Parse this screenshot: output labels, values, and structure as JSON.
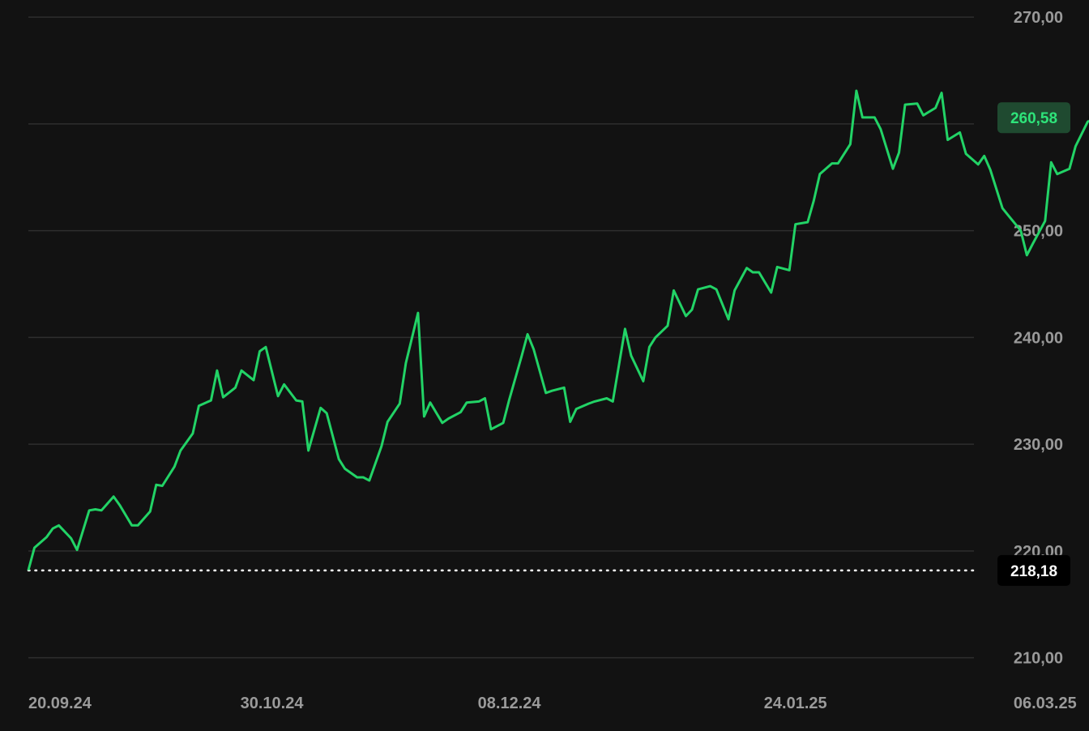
{
  "colors": {
    "background": "#121212",
    "line": "#22d366",
    "grid": "#2e2e2e",
    "tick_text": "#9a9a9a",
    "baseline": "#ffffff",
    "last_badge_bg": "#1f4a30",
    "last_badge_text": "#2ee47a",
    "base_badge_bg": "#000000",
    "base_badge_text": "#ffffff"
  },
  "chart_data": {
    "type": "line",
    "y_ticks": [
      "270,00",
      "260,00",
      "250,00",
      "240,00",
      "230,00",
      "220,00",
      "210,00"
    ],
    "y_tick_values": [
      270,
      260,
      250,
      240,
      230,
      220,
      210
    ],
    "ylim": [
      208,
      271.6
    ],
    "x_ticks": [
      "20.09.24",
      "30.10.24",
      "08.12.24",
      "24.01.25",
      "06.03.25"
    ],
    "x_tick_dates": [
      "2024-09-20",
      "2024-10-30",
      "2024-12-08",
      "2025-01-24",
      "2025-03-06"
    ],
    "xlim": [
      "2024-09-20",
      "2025-03-20"
    ],
    "grid": true,
    "baseline": {
      "value": 218.18,
      "label": "218,18",
      "style": "dotted"
    },
    "last_value": {
      "value": 260.58,
      "label": "260,58"
    },
    "series": [
      {
        "points": [
          [
            "2024-09-20",
            218.2
          ],
          [
            "2024-09-21",
            220.3
          ],
          [
            "2024-09-23",
            221.3
          ],
          [
            "2024-09-24",
            222.1
          ],
          [
            "2024-09-25",
            222.4
          ],
          [
            "2024-09-27",
            221.2
          ],
          [
            "2024-09-28",
            220.1
          ],
          [
            "2024-09-30",
            223.8
          ],
          [
            "2024-10-01",
            223.9
          ],
          [
            "2024-10-02",
            223.8
          ],
          [
            "2024-10-04",
            225.1
          ],
          [
            "2024-10-05",
            224.3
          ],
          [
            "2024-10-07",
            222.4
          ],
          [
            "2024-10-08",
            222.4
          ],
          [
            "2024-10-10",
            223.7
          ],
          [
            "2024-10-11",
            226.2
          ],
          [
            "2024-10-12",
            226.1
          ],
          [
            "2024-10-14",
            227.9
          ],
          [
            "2024-10-15",
            229.4
          ],
          [
            "2024-10-17",
            231.0
          ],
          [
            "2024-10-18",
            233.6
          ],
          [
            "2024-10-20",
            234.1
          ],
          [
            "2024-10-21",
            236.9
          ],
          [
            "2024-10-22",
            234.4
          ],
          [
            "2024-10-24",
            235.3
          ],
          [
            "2024-10-25",
            236.9
          ],
          [
            "2024-10-27",
            236.0
          ],
          [
            "2024-10-28",
            238.7
          ],
          [
            "2024-10-29",
            239.1
          ],
          [
            "2024-10-31",
            234.5
          ],
          [
            "2024-11-01",
            235.6
          ],
          [
            "2024-11-03",
            234.1
          ],
          [
            "2024-11-04",
            234.0
          ],
          [
            "2024-11-05",
            229.4
          ],
          [
            "2024-11-07",
            233.4
          ],
          [
            "2024-11-08",
            232.9
          ],
          [
            "2024-11-10",
            228.6
          ],
          [
            "2024-11-11",
            227.7
          ],
          [
            "2024-11-13",
            226.9
          ],
          [
            "2024-11-14",
            226.9
          ],
          [
            "2024-11-15",
            226.6
          ],
          [
            "2024-11-17",
            229.8
          ],
          [
            "2024-11-18",
            232.1
          ],
          [
            "2024-11-20",
            233.8
          ],
          [
            "2024-11-21",
            237.6
          ],
          [
            "2024-11-23",
            242.3
          ],
          [
            "2024-11-24",
            232.6
          ],
          [
            "2024-11-25",
            233.9
          ],
          [
            "2024-11-27",
            232.0
          ],
          [
            "2024-11-28",
            232.4
          ],
          [
            "2024-11-30",
            233.0
          ],
          [
            "2024-12-01",
            233.9
          ],
          [
            "2024-12-03",
            234.0
          ],
          [
            "2024-12-04",
            234.3
          ],
          [
            "2024-12-05",
            231.4
          ],
          [
            "2024-12-07",
            232.0
          ],
          [
            "2024-12-08",
            234.2
          ],
          [
            "2024-12-10",
            238.2
          ],
          [
            "2024-12-11",
            240.3
          ],
          [
            "2024-12-12",
            238.9
          ],
          [
            "2024-12-14",
            234.8
          ],
          [
            "2024-12-15",
            235.0
          ],
          [
            "2024-12-17",
            235.3
          ],
          [
            "2024-12-18",
            232.1
          ],
          [
            "2024-12-19",
            233.3
          ],
          [
            "2024-12-21",
            233.8
          ],
          [
            "2024-12-22",
            234.0
          ],
          [
            "2024-12-24",
            234.3
          ],
          [
            "2024-12-25",
            234.0
          ],
          [
            "2024-12-27",
            240.8
          ],
          [
            "2024-12-28",
            238.3
          ],
          [
            "2024-12-30",
            235.9
          ],
          [
            "2024-12-31",
            239.1
          ],
          [
            "2025-01-01",
            240.0
          ],
          [
            "2025-01-03",
            241.1
          ],
          [
            "2025-01-04",
            244.4
          ],
          [
            "2025-01-06",
            242.0
          ],
          [
            "2025-01-07",
            242.6
          ],
          [
            "2025-01-08",
            244.5
          ],
          [
            "2025-01-10",
            244.8
          ],
          [
            "2025-01-11",
            244.5
          ],
          [
            "2025-01-13",
            241.7
          ],
          [
            "2025-01-14",
            244.4
          ],
          [
            "2025-01-16",
            246.5
          ],
          [
            "2025-01-17",
            246.1
          ],
          [
            "2025-01-18",
            246.1
          ],
          [
            "2025-01-20",
            244.2
          ],
          [
            "2025-01-21",
            246.6
          ],
          [
            "2025-01-23",
            246.3
          ],
          [
            "2025-01-24",
            250.6
          ],
          [
            "2025-01-26",
            250.8
          ],
          [
            "2025-01-27",
            252.8
          ],
          [
            "2025-01-28",
            255.3
          ],
          [
            "2025-01-30",
            256.3
          ],
          [
            "2025-01-31",
            256.3
          ],
          [
            "2025-02-02",
            258.1
          ],
          [
            "2025-02-03",
            263.1
          ],
          [
            "2025-02-04",
            260.6
          ],
          [
            "2025-02-06",
            260.6
          ],
          [
            "2025-02-07",
            259.5
          ],
          [
            "2025-02-09",
            255.8
          ],
          [
            "2025-02-10",
            257.3
          ],
          [
            "2025-02-11",
            261.8
          ],
          [
            "2025-02-13",
            261.9
          ],
          [
            "2025-02-14",
            260.8
          ],
          [
            "2025-02-16",
            261.5
          ],
          [
            "2025-02-17",
            262.9
          ],
          [
            "2025-02-18",
            258.5
          ],
          [
            "2025-02-20",
            259.2
          ],
          [
            "2025-02-21",
            257.2
          ],
          [
            "2025-02-23",
            256.2
          ],
          [
            "2025-02-24",
            257.0
          ],
          [
            "2025-02-25",
            255.7
          ],
          [
            "2025-02-27",
            252.1
          ],
          [
            "2025-02-28",
            251.4
          ],
          [
            "2025-03-02",
            250.0
          ],
          [
            "2025-03-03",
            247.7
          ],
          [
            "2025-03-04",
            248.8
          ],
          [
            "2025-03-06",
            250.9
          ],
          [
            "2025-03-07",
            256.4
          ],
          [
            "2025-03-08",
            255.3
          ],
          [
            "2025-03-10",
            255.8
          ],
          [
            "2025-03-11",
            257.9
          ],
          [
            "2025-03-13",
            260.2
          ],
          [
            "2025-03-14",
            260.58
          ]
        ]
      }
    ]
  }
}
